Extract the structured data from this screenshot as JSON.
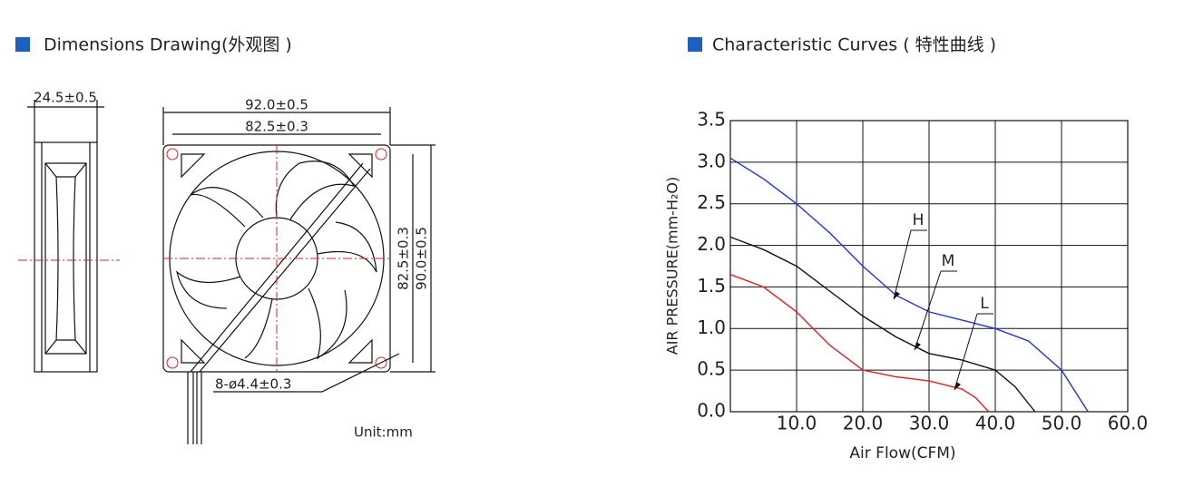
{
  "dimensions": {
    "heading": "Dimensions Drawing(外观图 )",
    "side_width": "24.5±0.5",
    "outer_width": "92.0±0.5",
    "hole_width": "82.5±0.3",
    "hole_height": "82.5±0.3",
    "outer_height": "90.0±0.5",
    "holes": "8-ø4.4±0.3",
    "unit": "Unit:mm"
  },
  "chart_data": {
    "type": "line",
    "title": "Characteristic Curves ( 特性曲线 )",
    "x_label": "Air Flow(CFM)",
    "y_label": "AIR PRESSURE(mm-H₂O)",
    "xlim": [
      0,
      60
    ],
    "ylim": [
      0,
      3.5
    ],
    "grid": true,
    "xticks": [
      {
        "value": 10,
        "label": "10.0"
      },
      {
        "value": 20,
        "label": "20.0"
      },
      {
        "value": 30,
        "label": "30.0"
      },
      {
        "value": 40,
        "label": "40.0"
      },
      {
        "value": 50,
        "label": "50.0"
      },
      {
        "value": 60,
        "label": "60.0"
      }
    ],
    "yticks": [
      {
        "value": 0,
        "label": "0.0"
      },
      {
        "value": 0.5,
        "label": "0.5"
      },
      {
        "value": 1,
        "label": "1.0"
      },
      {
        "value": 1.5,
        "label": "1.5"
      },
      {
        "value": 2,
        "label": "2.0"
      },
      {
        "value": 2.5,
        "label": "2.5"
      },
      {
        "value": 3,
        "label": "3.0"
      },
      {
        "value": 3.5,
        "label": "3.5"
      }
    ],
    "series": [
      {
        "name": "H",
        "color": "#2233dd",
        "x": [
          0,
          5,
          10,
          15,
          20,
          25,
          30,
          35,
          40,
          45,
          50,
          54
        ],
        "values": [
          3.05,
          2.8,
          2.5,
          2.15,
          1.75,
          1.4,
          1.2,
          1.1,
          1.0,
          0.85,
          0.5,
          0.0
        ]
      },
      {
        "name": "M",
        "color": "#111111",
        "x": [
          0,
          5,
          10,
          15,
          20,
          25,
          30,
          35,
          40,
          43,
          46
        ],
        "values": [
          2.1,
          1.95,
          1.75,
          1.45,
          1.15,
          0.9,
          0.7,
          0.62,
          0.5,
          0.3,
          0.0
        ]
      },
      {
        "name": "L",
        "color": "#dd2222",
        "x": [
          0,
          5,
          10,
          15,
          20,
          25,
          30,
          35,
          37,
          39
        ],
        "values": [
          1.65,
          1.5,
          1.2,
          0.8,
          0.5,
          0.42,
          0.37,
          0.27,
          0.17,
          0.0
        ]
      }
    ]
  }
}
